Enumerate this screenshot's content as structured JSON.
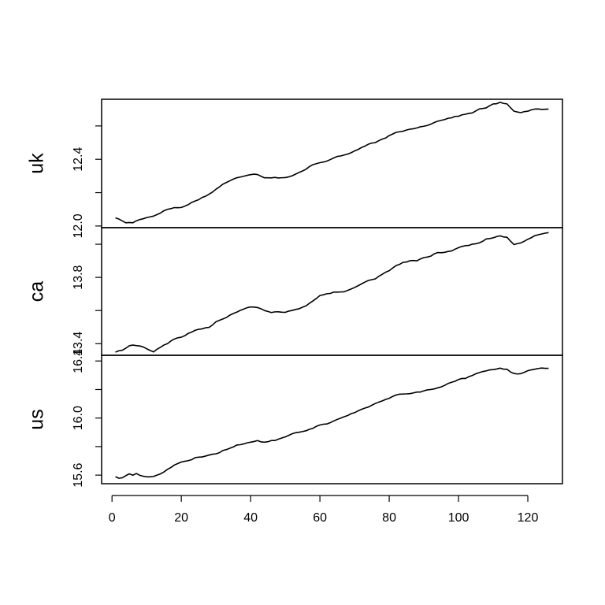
{
  "chart_data": {
    "type": "line",
    "layout": "stacked-panels",
    "x_range": [
      1,
      126
    ],
    "x_ticks": [
      0,
      20,
      40,
      60,
      80,
      100,
      120
    ],
    "grid": false,
    "legend": "none",
    "colors": {
      "line": "#000000",
      "axes": "#000000",
      "background": "#ffffff"
    },
    "panels": [
      {
        "name": "uk",
        "ylim": [
          11.99,
          12.76
        ],
        "y_ticks": [
          12.0,
          12.4
        ],
        "y_tick_labels": [
          "12.0",
          "12.4"
        ],
        "y_minor_ticks": [
          12.2,
          12.6
        ],
        "anchors": [
          [
            1,
            12.05
          ],
          [
            2,
            12.04
          ],
          [
            4,
            12.02
          ],
          [
            6,
            12.02
          ],
          [
            8,
            12.04
          ],
          [
            10,
            12.05
          ],
          [
            12,
            12.06
          ],
          [
            14,
            12.08
          ],
          [
            16,
            12.1
          ],
          [
            18,
            12.11
          ],
          [
            20,
            12.11
          ],
          [
            22,
            12.13
          ],
          [
            24,
            12.15
          ],
          [
            26,
            12.17
          ],
          [
            28,
            12.19
          ],
          [
            30,
            12.22
          ],
          [
            32,
            12.25
          ],
          [
            34,
            12.27
          ],
          [
            36,
            12.29
          ],
          [
            38,
            12.3
          ],
          [
            40,
            12.31
          ],
          [
            42,
            12.31
          ],
          [
            44,
            12.29
          ],
          [
            46,
            12.29
          ],
          [
            48,
            12.29
          ],
          [
            50,
            12.29
          ],
          [
            52,
            12.3
          ],
          [
            54,
            12.32
          ],
          [
            56,
            12.34
          ],
          [
            58,
            12.37
          ],
          [
            60,
            12.38
          ],
          [
            62,
            12.39
          ],
          [
            64,
            12.41
          ],
          [
            66,
            12.42
          ],
          [
            68,
            12.43
          ],
          [
            70,
            12.45
          ],
          [
            72,
            12.47
          ],
          [
            74,
            12.49
          ],
          [
            76,
            12.5
          ],
          [
            78,
            12.52
          ],
          [
            80,
            12.54
          ],
          [
            82,
            12.56
          ],
          [
            84,
            12.57
          ],
          [
            86,
            12.58
          ],
          [
            88,
            12.59
          ],
          [
            90,
            12.6
          ],
          [
            92,
            12.61
          ],
          [
            94,
            12.63
          ],
          [
            96,
            12.64
          ],
          [
            98,
            12.65
          ],
          [
            100,
            12.66
          ],
          [
            102,
            12.67
          ],
          [
            104,
            12.68
          ],
          [
            106,
            12.7
          ],
          [
            108,
            12.71
          ],
          [
            110,
            12.73
          ],
          [
            112,
            12.74
          ],
          [
            114,
            12.73
          ],
          [
            116,
            12.69
          ],
          [
            118,
            12.68
          ],
          [
            120,
            12.69
          ],
          [
            122,
            12.7
          ],
          [
            124,
            12.7
          ],
          [
            126,
            12.7
          ]
        ]
      },
      {
        "name": "ca",
        "ylim": [
          13.33,
          14.1
        ],
        "y_ticks": [
          13.4,
          13.8
        ],
        "y_tick_labels": [
          "13.4",
          "13.8"
        ],
        "y_minor_ticks": [
          13.6,
          14.0
        ],
        "anchors": [
          [
            1,
            13.35
          ],
          [
            3,
            13.36
          ],
          [
            5,
            13.39
          ],
          [
            7,
            13.39
          ],
          [
            9,
            13.38
          ],
          [
            11,
            13.36
          ],
          [
            12,
            13.35
          ],
          [
            14,
            13.38
          ],
          [
            16,
            13.4
          ],
          [
            18,
            13.43
          ],
          [
            20,
            13.44
          ],
          [
            22,
            13.46
          ],
          [
            24,
            13.48
          ],
          [
            26,
            13.49
          ],
          [
            28,
            13.5
          ],
          [
            30,
            13.53
          ],
          [
            32,
            13.55
          ],
          [
            34,
            13.57
          ],
          [
            36,
            13.59
          ],
          [
            38,
            13.61
          ],
          [
            40,
            13.62
          ],
          [
            42,
            13.62
          ],
          [
            44,
            13.6
          ],
          [
            46,
            13.59
          ],
          [
            48,
            13.59
          ],
          [
            50,
            13.59
          ],
          [
            52,
            13.6
          ],
          [
            54,
            13.61
          ],
          [
            56,
            13.63
          ],
          [
            58,
            13.66
          ],
          [
            60,
            13.69
          ],
          [
            62,
            13.7
          ],
          [
            64,
            13.71
          ],
          [
            66,
            13.71
          ],
          [
            68,
            13.72
          ],
          [
            70,
            13.74
          ],
          [
            72,
            13.76
          ],
          [
            74,
            13.78
          ],
          [
            76,
            13.79
          ],
          [
            78,
            13.82
          ],
          [
            80,
            13.84
          ],
          [
            82,
            13.87
          ],
          [
            84,
            13.89
          ],
          [
            86,
            13.9
          ],
          [
            88,
            13.9
          ],
          [
            90,
            13.92
          ],
          [
            92,
            13.93
          ],
          [
            94,
            13.95
          ],
          [
            96,
            13.95
          ],
          [
            98,
            13.96
          ],
          [
            100,
            13.98
          ],
          [
            102,
            13.99
          ],
          [
            104,
            14.0
          ],
          [
            106,
            14.01
          ],
          [
            108,
            14.03
          ],
          [
            110,
            14.04
          ],
          [
            112,
            14.05
          ],
          [
            114,
            14.04
          ],
          [
            116,
            14.0
          ],
          [
            118,
            14.01
          ],
          [
            120,
            14.03
          ],
          [
            122,
            14.05
          ],
          [
            124,
            14.06
          ],
          [
            126,
            14.07
          ]
        ]
      },
      {
        "name": "us",
        "ylim": [
          15.54,
          16.44
        ],
        "y_ticks": [
          15.6,
          16.0,
          16.4
        ],
        "y_tick_labels": [
          "15.6",
          "16.0",
          "16.4"
        ],
        "y_minor_ticks": [
          15.8,
          16.2
        ],
        "anchors": [
          [
            1,
            15.59
          ],
          [
            2,
            15.58
          ],
          [
            3,
            15.58
          ],
          [
            5,
            15.61
          ],
          [
            6,
            15.6
          ],
          [
            7,
            15.61
          ],
          [
            8,
            15.6
          ],
          [
            9,
            15.59
          ],
          [
            10,
            15.59
          ],
          [
            12,
            15.59
          ],
          [
            14,
            15.61
          ],
          [
            16,
            15.64
          ],
          [
            18,
            15.67
          ],
          [
            20,
            15.69
          ],
          [
            22,
            15.7
          ],
          [
            24,
            15.72
          ],
          [
            26,
            15.73
          ],
          [
            28,
            15.74
          ],
          [
            30,
            15.75
          ],
          [
            32,
            15.77
          ],
          [
            34,
            15.79
          ],
          [
            36,
            15.81
          ],
          [
            38,
            15.82
          ],
          [
            40,
            15.83
          ],
          [
            42,
            15.84
          ],
          [
            44,
            15.83
          ],
          [
            46,
            15.84
          ],
          [
            48,
            15.85
          ],
          [
            50,
            15.87
          ],
          [
            52,
            15.89
          ],
          [
            54,
            15.9
          ],
          [
            56,
            15.91
          ],
          [
            58,
            15.93
          ],
          [
            60,
            15.95
          ],
          [
            62,
            15.96
          ],
          [
            64,
            15.98
          ],
          [
            66,
            16.0
          ],
          [
            68,
            16.02
          ],
          [
            70,
            16.04
          ],
          [
            72,
            16.06
          ],
          [
            74,
            16.08
          ],
          [
            76,
            16.1
          ],
          [
            78,
            16.12
          ],
          [
            80,
            16.14
          ],
          [
            82,
            16.16
          ],
          [
            84,
            16.17
          ],
          [
            86,
            16.17
          ],
          [
            88,
            16.18
          ],
          [
            90,
            16.19
          ],
          [
            92,
            16.2
          ],
          [
            94,
            16.21
          ],
          [
            96,
            16.23
          ],
          [
            98,
            16.25
          ],
          [
            100,
            16.27
          ],
          [
            102,
            16.28
          ],
          [
            104,
            16.3
          ],
          [
            106,
            16.32
          ],
          [
            108,
            16.33
          ],
          [
            110,
            16.34
          ],
          [
            112,
            16.35
          ],
          [
            114,
            16.34
          ],
          [
            116,
            16.31
          ],
          [
            118,
            16.31
          ],
          [
            120,
            16.33
          ],
          [
            122,
            16.34
          ],
          [
            124,
            16.35
          ],
          [
            126,
            16.35
          ]
        ]
      }
    ]
  }
}
